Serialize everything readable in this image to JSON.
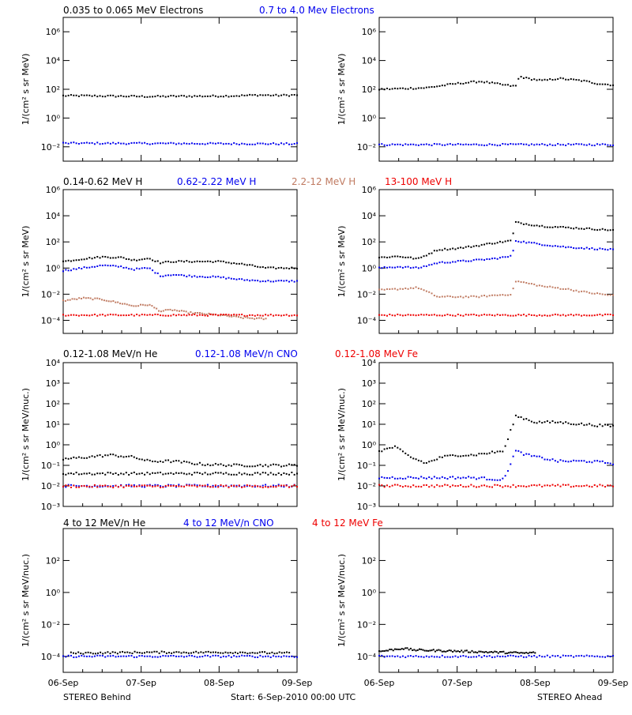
{
  "colors": {
    "black": "#000000",
    "blue": "#0000ee",
    "tan": "#c07b62",
    "red": "#ee0000"
  },
  "titles": {
    "row1": [
      {
        "text": "0.035 to 0.065 MeV Electrons",
        "color": "#000000"
      },
      {
        "text": "0.7 to 4.0 Mev Electrons",
        "color": "#0000ee"
      }
    ],
    "row2": [
      {
        "text": "0.14-0.62 MeV H",
        "color": "#000000"
      },
      {
        "text": "0.62-2.22 MeV H",
        "color": "#0000ee"
      },
      {
        "text": "2.2-12 MeV H",
        "color": "#c07b62"
      },
      {
        "text": "13-100 MeV H",
        "color": "#ee0000"
      }
    ],
    "row3": [
      {
        "text": "0.12-1.08 MeV/n He",
        "color": "#000000"
      },
      {
        "text": "0.12-1.08 MeV/n CNO",
        "color": "#0000ee"
      },
      {
        "text": "0.12-1.08 MeV Fe",
        "color": "#ee0000"
      }
    ],
    "row4": [
      {
        "text": "4 to 12 MeV/n He",
        "color": "#000000"
      },
      {
        "text": "4 to 12 MeV/n CNO",
        "color": "#0000ee"
      },
      {
        "text": "4 to 12 MeV Fe",
        "color": "#ee0000"
      }
    ]
  },
  "ylabels": {
    "flux": "1/(cm² s sr MeV)",
    "flux_nuc": "1/(cm² s sr MeV/nuc.)"
  },
  "footer": {
    "left": "STEREO Behind",
    "center": "Start:  6-Sep-2010 00:00 UTC",
    "right": "STEREO Ahead"
  },
  "chart_data": [
    {
      "type": "scatter",
      "row": 1,
      "col": 0,
      "yscale": "log",
      "ylim_exp": [
        -3,
        7
      ],
      "yticks": [
        "10⁻²",
        "10⁰",
        "10²",
        "10⁴",
        "10⁶"
      ],
      "yticks_exp": [
        -2,
        0,
        2,
        4,
        6
      ],
      "x_ticks": [
        "06-Sep",
        "07-Sep",
        "08-Sep",
        "09-Sep"
      ],
      "series": [
        {
          "color": "#000000",
          "x": [
            0,
            0.25,
            0.5,
            0.75,
            1.0,
            1.25,
            1.5,
            1.75,
            2.0,
            2.25,
            2.5,
            2.75,
            3.0
          ],
          "log_y": [
            1.55,
            1.55,
            1.53,
            1.52,
            1.5,
            1.5,
            1.52,
            1.52,
            1.53,
            1.55,
            1.6,
            1.57,
            1.6
          ]
        },
        {
          "color": "#0000ee",
          "x": [
            0,
            3.0
          ],
          "log_y": [
            -1.75,
            -1.8
          ]
        }
      ]
    },
    {
      "type": "scatter",
      "row": 1,
      "col": 1,
      "yscale": "log",
      "ylim_exp": [
        -3,
        7
      ],
      "yticks": [
        "10⁻²",
        "10⁰",
        "10²",
        "10⁴",
        "10⁶"
      ],
      "yticks_exp": [
        -2,
        0,
        2,
        4,
        6
      ],
      "x_ticks": [
        "06-Sep",
        "07-Sep",
        "08-Sep",
        "09-Sep"
      ],
      "series": [
        {
          "color": "#000000",
          "x": [
            0,
            0.3,
            0.6,
            1.0,
            1.3,
            1.6,
            1.75,
            1.8,
            1.9,
            2.1,
            2.3,
            2.6,
            2.8,
            3.0
          ],
          "log_y": [
            2.0,
            2.05,
            2.1,
            2.4,
            2.55,
            2.3,
            2.2,
            2.9,
            2.75,
            2.6,
            2.75,
            2.6,
            2.4,
            2.3
          ]
        },
        {
          "color": "#0000ee",
          "x": [
            0,
            3.0
          ],
          "log_y": [
            -1.85,
            -1.85
          ]
        }
      ]
    },
    {
      "type": "scatter",
      "row": 2,
      "col": 0,
      "yscale": "log",
      "ylim_exp": [
        -5,
        6
      ],
      "yticks": [
        "10⁻⁴",
        "10⁻²",
        "10⁰",
        "10²",
        "10⁴",
        "10⁶"
      ],
      "yticks_exp": [
        -4,
        -2,
        0,
        2,
        4,
        6
      ],
      "x_ticks": [
        "06-Sep",
        "07-Sep",
        "08-Sep",
        "09-Sep"
      ],
      "series": [
        {
          "color": "#000000",
          "x": [
            0,
            0.25,
            0.5,
            0.75,
            0.9,
            1.1,
            1.25,
            1.4,
            1.6,
            2.0,
            2.3,
            2.6,
            3.0
          ],
          "log_y": [
            0.5,
            0.7,
            0.85,
            0.8,
            0.6,
            0.75,
            0.4,
            0.5,
            0.5,
            0.5,
            0.3,
            0.0,
            0.0
          ]
        },
        {
          "color": "#0000ee",
          "x": [
            0,
            0.25,
            0.5,
            0.75,
            0.9,
            1.1,
            1.25,
            1.4,
            1.6,
            2.0,
            2.3,
            2.6,
            3.0
          ],
          "log_y": [
            -0.2,
            0.0,
            0.2,
            0.1,
            -0.1,
            0.0,
            -0.6,
            -0.5,
            -0.6,
            -0.7,
            -0.9,
            -1.0,
            -1.0
          ]
        },
        {
          "color": "#c07b62",
          "x": [
            0,
            0.25,
            0.5,
            0.75,
            0.9,
            1.1,
            1.25,
            1.4,
            1.6,
            2.0,
            2.3,
            2.6
          ],
          "log_y": [
            -2.5,
            -2.3,
            -2.4,
            -2.7,
            -2.9,
            -2.8,
            -3.3,
            -3.2,
            -3.4,
            -3.6,
            -3.8,
            -3.9
          ]
        },
        {
          "color": "#ee0000",
          "x": [
            0,
            3.0
          ],
          "log_y": [
            -3.6,
            -3.6
          ]
        }
      ]
    },
    {
      "type": "scatter",
      "row": 2,
      "col": 1,
      "yscale": "log",
      "ylim_exp": [
        -5,
        6
      ],
      "yticks": [
        "10⁻⁴",
        "10⁻²",
        "10⁰",
        "10²",
        "10⁴",
        "10⁶"
      ],
      "yticks_exp": [
        -4,
        -2,
        0,
        2,
        4,
        6
      ],
      "x_ticks": [
        "06-Sep",
        "07-Sep",
        "08-Sep",
        "09-Sep"
      ],
      "series": [
        {
          "color": "#000000",
          "x": [
            0,
            0.25,
            0.5,
            0.75,
            1.0,
            1.25,
            1.45,
            1.7,
            1.75,
            1.85,
            2.1,
            2.4,
            2.7,
            3.0
          ],
          "log_y": [
            0.8,
            0.9,
            0.7,
            1.4,
            1.5,
            1.7,
            1.9,
            2.1,
            3.5,
            3.4,
            3.2,
            3.1,
            3.0,
            2.9
          ]
        },
        {
          "color": "#0000ee",
          "x": [
            0,
            0.25,
            0.5,
            0.75,
            1.0,
            1.25,
            1.45,
            1.7,
            1.75,
            1.85,
            2.1,
            2.4,
            2.7,
            3.0
          ],
          "log_y": [
            0.0,
            0.1,
            0.0,
            0.4,
            0.5,
            0.6,
            0.7,
            0.9,
            2.1,
            2.0,
            1.8,
            1.6,
            1.5,
            1.4
          ]
        },
        {
          "color": "#c07b62",
          "x": [
            0,
            0.25,
            0.5,
            0.75,
            1.0,
            1.25,
            1.45,
            1.7,
            1.75,
            1.85,
            2.1,
            2.4,
            2.7,
            3.0
          ],
          "log_y": [
            -1.7,
            -1.6,
            -1.5,
            -2.2,
            -2.2,
            -2.2,
            -2.1,
            -2.0,
            -1.0,
            -1.1,
            -1.4,
            -1.6,
            -1.9,
            -2.1
          ]
        },
        {
          "color": "#ee0000",
          "x": [
            0,
            3.0
          ],
          "log_y": [
            -3.6,
            -3.6
          ]
        }
      ]
    },
    {
      "type": "scatter",
      "row": 3,
      "col": 0,
      "yscale": "log",
      "ylim_exp": [
        -3,
        4
      ],
      "yticks": [
        "10⁻³",
        "10⁻²",
        "10⁻¹",
        "10⁰",
        "10¹",
        "10²",
        "10³",
        "10⁴"
      ],
      "yticks_exp": [
        -3,
        -2,
        -1,
        0,
        1,
        2,
        3,
        4
      ],
      "x_ticks": [
        "06-Sep",
        "07-Sep",
        "08-Sep",
        "09-Sep"
      ],
      "series": [
        {
          "color": "#000000",
          "x": [
            0,
            0.3,
            0.6,
            0.9,
            1.1,
            1.4,
            1.8,
            2.2,
            2.6,
            3.0
          ],
          "log_y": [
            -0.7,
            -0.6,
            -0.5,
            -0.6,
            -0.8,
            -0.8,
            -0.95,
            -1.0,
            -1.0,
            -1.0
          ]
        },
        {
          "color": "#000000",
          "x": [
            0,
            3.0
          ],
          "log_y": [
            -1.4,
            -1.4
          ]
        },
        {
          "color": "#0000ee",
          "x": [
            0,
            3.0
          ],
          "log_y": [
            -2.0,
            -2.0
          ]
        },
        {
          "color": "#ee0000",
          "x": [
            0,
            3.0
          ],
          "log_y": [
            -2.02,
            -2.02
          ]
        }
      ]
    },
    {
      "type": "scatter",
      "row": 3,
      "col": 1,
      "yscale": "log",
      "ylim_exp": [
        -3,
        4
      ],
      "yticks": [
        "10⁻³",
        "10⁻²",
        "10⁻¹",
        "10⁰",
        "10¹",
        "10²",
        "10³",
        "10⁴"
      ],
      "yticks_exp": [
        -3,
        -2,
        -1,
        0,
        1,
        2,
        3,
        4
      ],
      "x_ticks": [
        "06-Sep",
        "07-Sep",
        "08-Sep",
        "09-Sep"
      ],
      "series": [
        {
          "color": "#000000",
          "x": [
            0,
            0.2,
            0.4,
            0.6,
            0.8,
            1.0,
            1.2,
            1.4,
            1.6,
            1.75,
            1.85,
            2.0,
            2.3,
            2.6,
            3.0
          ],
          "log_y": [
            -0.3,
            -0.1,
            -0.6,
            -0.9,
            -0.6,
            -0.5,
            -0.5,
            -0.4,
            -0.3,
            1.4,
            1.3,
            1.1,
            1.1,
            1.0,
            0.9
          ]
        },
        {
          "color": "#0000ee",
          "x": [
            0,
            0.6,
            1.2,
            1.6,
            1.75,
            1.9,
            2.3,
            2.7,
            3.0
          ],
          "log_y": [
            -1.6,
            -1.6,
            -1.6,
            -1.7,
            -0.3,
            -0.5,
            -0.8,
            -0.8,
            -0.9
          ]
        },
        {
          "color": "#ee0000",
          "x": [
            0,
            3.0
          ],
          "log_y": [
            -2.0,
            -2.0
          ]
        }
      ]
    },
    {
      "type": "scatter",
      "row": 4,
      "col": 0,
      "yscale": "log",
      "ylim_exp": [
        -5,
        4
      ],
      "yticks": [
        "10⁻⁴",
        "10⁻²",
        "10⁰",
        "10²"
      ],
      "yticks_exp": [
        -4,
        -2,
        0,
        2
      ],
      "x_ticks": [
        "06-Sep",
        "07-Sep",
        "08-Sep",
        "09-Sep"
      ],
      "series": [
        {
          "color": "#000000",
          "x": [
            0.1,
            1.05,
            2.15,
            2.9
          ],
          "log_y": [
            -3.8,
            -3.75,
            -3.75,
            -3.8
          ]
        },
        {
          "color": "#0000ee",
          "x": [
            0,
            3.0
          ],
          "log_y": [
            -4.0,
            -4.0
          ]
        }
      ]
    },
    {
      "type": "scatter",
      "row": 4,
      "col": 1,
      "yscale": "log",
      "ylim_exp": [
        -5,
        4
      ],
      "yticks": [
        "10⁻⁴",
        "10⁻²",
        "10⁰",
        "10²"
      ],
      "yticks_exp": [
        -4,
        -2,
        0,
        2
      ],
      "x_ticks": [
        "06-Sep",
        "07-Sep",
        "08-Sep",
        "09-Sep"
      ],
      "series": [
        {
          "color": "#000000",
          "x": [
            0.0,
            0.15,
            0.3,
            0.45,
            1.9,
            2.0
          ],
          "log_y": [
            -3.7,
            -3.6,
            -3.5,
            -3.6,
            -3.8,
            -3.75
          ]
        },
        {
          "color": "#0000ee",
          "x": [
            0,
            3.0
          ],
          "log_y": [
            -4.0,
            -4.0
          ]
        }
      ]
    }
  ]
}
